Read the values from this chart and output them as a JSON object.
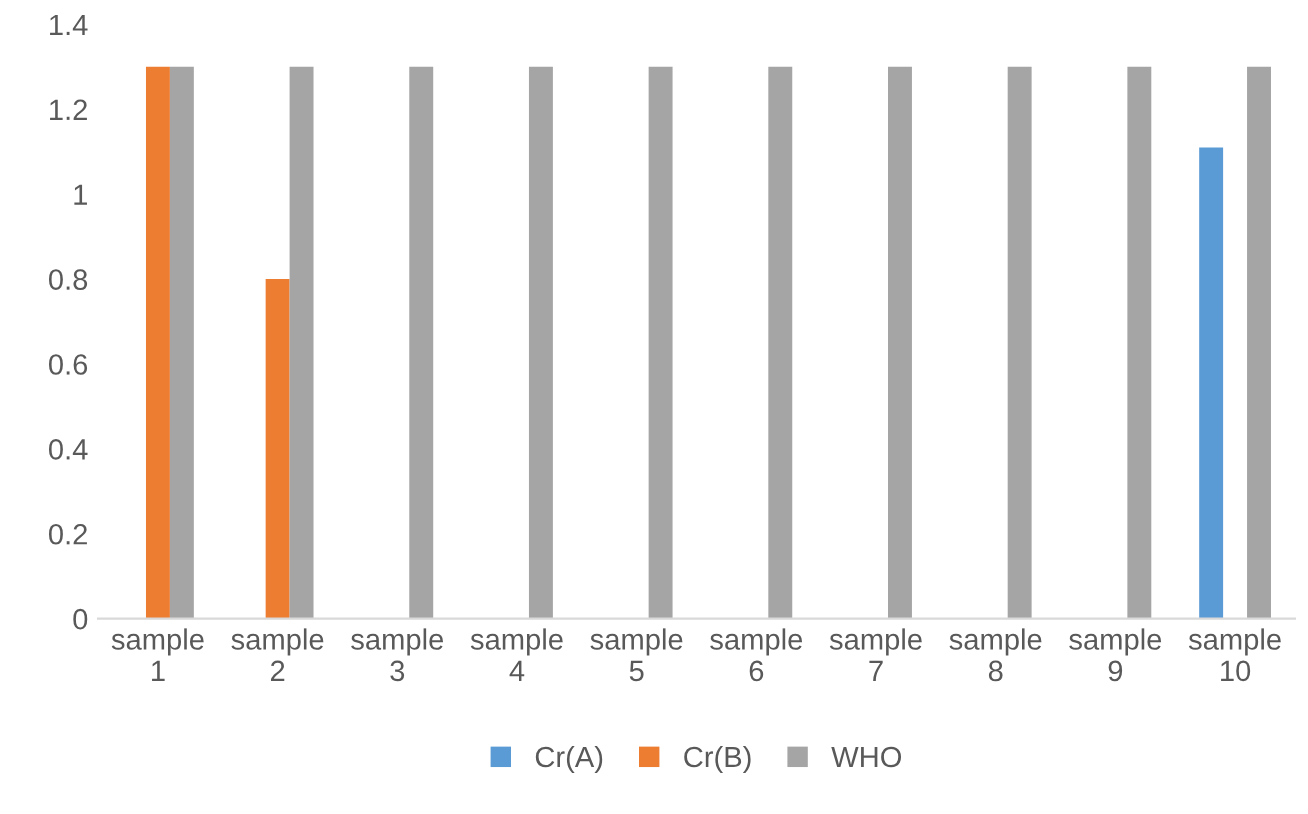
{
  "chart_data": {
    "type": "bar",
    "categories": [
      "sample\n1",
      "sample\n2",
      "sample\n3",
      "sample\n4",
      "sample\n5",
      "sample\n6",
      "sample\n7",
      "sample\n8",
      "sample\n9",
      "sample\n10"
    ],
    "series": [
      {
        "name": "Cr(A)",
        "color": "#5b9bd5",
        "values": [
          null,
          null,
          null,
          null,
          null,
          null,
          null,
          null,
          null,
          1.11
        ]
      },
      {
        "name": "Cr(B)",
        "color": "#ed7d31",
        "values": [
          1.3,
          0.8,
          null,
          null,
          null,
          null,
          null,
          null,
          null,
          null
        ]
      },
      {
        "name": "WHO",
        "color": "#a5a5a5",
        "values": [
          1.3,
          1.3,
          1.3,
          1.3,
          1.3,
          1.3,
          1.3,
          1.3,
          1.3,
          1.3
        ]
      }
    ],
    "ylim": [
      0,
      1.4
    ],
    "yticks": [
      0,
      0.2,
      0.4,
      0.6,
      0.8,
      1,
      1.2,
      1.4
    ],
    "grid": false,
    "legend": "bottom"
  }
}
